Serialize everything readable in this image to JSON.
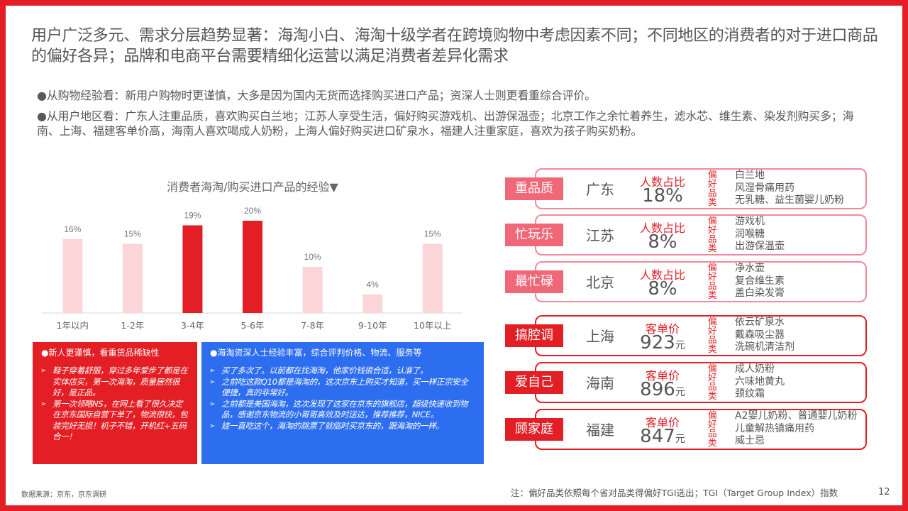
{
  "title": "用户广泛多元、需求分层趋势显著：海淘小白、海淘十级学者在跨境购物中考虑因素不同；不同地区的消费者的对于进口商品的偏好各异；品牌和电商平台需要精细化运营以满足消费者差异化需求",
  "bullets": [
    "●从购物经验看：新用户购物时更谨慎，大多是因为国内无货而选择购买进口产品；资深人士则更看重综合评价。",
    "●从用户地区看：广东人注重品质，喜欢购买白兰地；江苏人享受生活，偏好购买游戏机、出游保温壶；北京工作之余忙着养生，滤水芯、维生素、染发剂购买多；海南、上海、福建客单价高，海南人喜欢喝成人奶粉，上海人偏好购买进口矿泉水，福建人注重家庭，喜欢为孩子购买奶粉。"
  ],
  "chart_data": {
    "type": "bar",
    "title": "消费者海淘/购买进口产品的经验▼",
    "categories": [
      "1年以内",
      "1-2年",
      "3-4年",
      "5-6年",
      "7-8年",
      "9-10年",
      "10年以上"
    ],
    "values": [
      16,
      15,
      19,
      20,
      10,
      4,
      15
    ],
    "value_labels": [
      "16%",
      "15%",
      "19%",
      "20%",
      "10%",
      "4%",
      "15%"
    ],
    "highlighted": [
      "3-4年",
      "5-6年"
    ],
    "colors": {
      "normal": "#fcd5d8",
      "highlight": "#e31e24"
    },
    "ylim": [
      0,
      20
    ]
  },
  "quote_red": {
    "heading": "●新人更谨慎，看重货品稀缺性",
    "items": [
      "鞋子穿着舒服，穿过多年爱步了都是在实体店买，第一次海淘，质量居然很好，是正品。",
      "第一次领略NS，在网上看了很久决定在京东国际自营下单了，物流很快，包装完好无损！机子不错，开机红+五码合一！"
    ]
  },
  "quote_blue": {
    "heading": "●海淘资深人士经验丰富，综合评判价格、物流、服务等",
    "items": [
      "买了多次了。以前都在找海淘，他家价钱很合适，认准了。",
      "之前吃这款Q10都是海淘的，这次京东上购买才知道，买一样正宗安全便捷，真的非常好。",
      "之前都是美国海淘，这次发现了这家在京东的旗舰店，超级快速收到物品，感谢京东物流的小哥哥高效及时送达，推荐推荐，NICE。",
      "娃一直吃这个，海淘的跳票了就临时买京东的，跟海淘的一样。"
    ]
  },
  "pref_label": "偏好品类",
  "regions": [
    {
      "tag": "重品质",
      "city": "广东",
      "metric_label": "人数占比",
      "metric_value": "18%",
      "metric_unit": "",
      "items": [
        "白兰地",
        "风湿骨痛用药",
        "无乳糖、益生菌婴儿奶粉"
      ]
    },
    {
      "tag": "忙玩乐",
      "city": "江苏",
      "metric_label": "人数占比",
      "metric_value": "8%",
      "metric_unit": "",
      "items": [
        "游戏机",
        "润喉糖",
        "出游保温壶"
      ]
    },
    {
      "tag": "最忙碌",
      "city": "北京",
      "metric_label": "人数占比",
      "metric_value": "8%",
      "metric_unit": "",
      "items": [
        "净水壶",
        "复合维生素",
        "盖白染发膏"
      ]
    },
    {
      "tag": "搞腔调",
      "city": "上海",
      "metric_label": "客单价",
      "metric_value": "923",
      "metric_unit": "元",
      "items": [
        "依云矿泉水",
        "戴森吸尘器",
        "洗碗机清洁剂"
      ]
    },
    {
      "tag": "爱自己",
      "city": "海南",
      "metric_label": "客单价",
      "metric_value": "896",
      "metric_unit": "元",
      "items": [
        "成人奶粉",
        "六味地黄丸",
        "颈纹霜"
      ]
    },
    {
      "tag": "顾家庭",
      "city": "福建",
      "metric_label": "客单价",
      "metric_value": "847",
      "metric_unit": "元",
      "items": [
        "A2婴儿奶粉、普通婴儿奶粉",
        "儿童解热镇痛用药",
        "威士忌"
      ]
    }
  ],
  "footer": {
    "source": "数据来源：京东，京东调研",
    "note": "注：偏好品类依照每个省对品类得偏好TGI选出；TGI（Target Group Index）指数",
    "page": "12"
  }
}
